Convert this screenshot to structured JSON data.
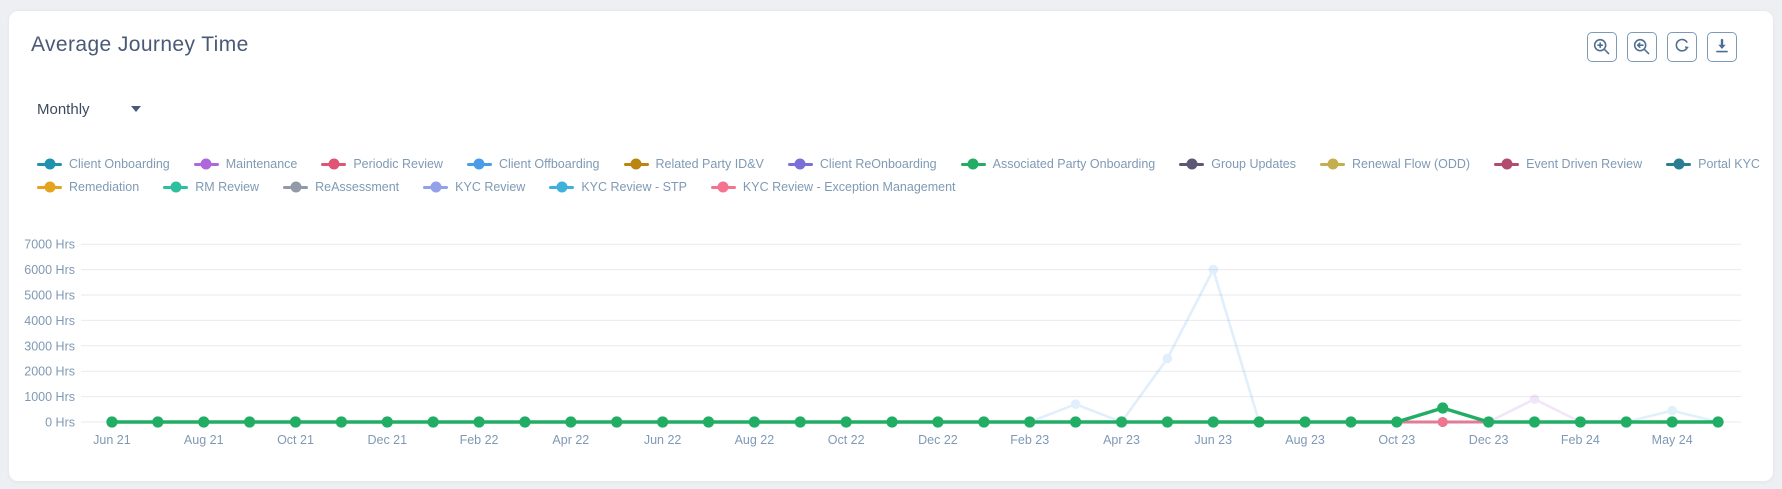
{
  "header": {
    "title": "Average Journey Time"
  },
  "toolbar": {
    "icons": [
      "zoom-in",
      "zoom-out",
      "reset-zoom",
      "download"
    ]
  },
  "controls": {
    "interval_select": {
      "value": "Monthly",
      "icon": "chevron-down-icon"
    }
  },
  "chart_data": {
    "type": "line",
    "title": "Average Journey Time",
    "interval": "Monthly",
    "grid": "horizontal",
    "legend_position": "top",
    "ylim": [
      0,
      7500
    ],
    "ylabel_unit": "Hrs",
    "yticks": [
      {
        "value": 0,
        "label": "0 Hrs"
      },
      {
        "value": 1000,
        "label": "1000 Hrs"
      },
      {
        "value": 2000,
        "label": "2000 Hrs"
      },
      {
        "value": 3000,
        "label": "3000 Hrs"
      },
      {
        "value": 4000,
        "label": "4000 Hrs"
      },
      {
        "value": 5000,
        "label": "5000 Hrs"
      },
      {
        "value": 6000,
        "label": "6000 Hrs"
      },
      {
        "value": 7000,
        "label": "7000 Hrs"
      }
    ],
    "categories": [
      "Jun 21",
      "Jul 21",
      "Aug 21",
      "Sep 21",
      "Oct 21",
      "Nov 21",
      "Dec 21",
      "Jan 22",
      "Feb 22",
      "Mar 22",
      "Apr 22",
      "May 22",
      "Jun 22",
      "Jul 22",
      "Aug 22",
      "Sep 22",
      "Oct 22",
      "Nov 22",
      "Dec 22",
      "Jan 23",
      "Feb 23",
      "Mar 23",
      "Apr 23",
      "May 23",
      "Jun 23",
      "Jul 23",
      "Aug 23",
      "Sep 23",
      "Oct 23",
      "Nov 23",
      "Dec 23",
      "Jan 24",
      "Feb 24",
      "Mar 24",
      "May 24",
      "Jun 24"
    ],
    "visible_x_tick_labels": [
      "Jun 21",
      "Aug 21",
      "Oct 21",
      "Dec 21",
      "Feb 22",
      "Apr 22",
      "Jun 22",
      "Aug 22",
      "Oct 22",
      "Dec 22",
      "Feb 23",
      "Apr 23",
      "Jun 23",
      "Aug 23",
      "Oct 23",
      "Dec 23",
      "Feb 24",
      "May 24"
    ],
    "series": [
      {
        "name": "Client Onboarding",
        "color": "#2192ae",
        "legend_row": 1,
        "dimmed": false,
        "values": [
          0,
          0,
          0,
          0,
          0,
          0,
          0,
          0,
          0,
          0,
          0,
          0,
          0,
          0,
          0,
          0,
          0,
          0,
          0,
          0,
          0,
          0,
          0,
          0,
          0,
          0,
          0,
          0,
          0,
          0,
          0,
          0,
          0,
          0,
          0,
          0
        ]
      },
      {
        "name": "Maintenance",
        "color": "#ae68d9",
        "legend_row": 1,
        "dimmed": true,
        "values": [
          0,
          0,
          0,
          0,
          0,
          0,
          0,
          0,
          0,
          0,
          0,
          0,
          0,
          0,
          0,
          0,
          0,
          0,
          0,
          0,
          0,
          0,
          0,
          0,
          0,
          0,
          0,
          0,
          0,
          0,
          0,
          900,
          0,
          0,
          0,
          0
        ]
      },
      {
        "name": "Periodic Review",
        "color": "#df5475",
        "legend_row": 1,
        "dimmed": false,
        "values": [
          0,
          0,
          0,
          0,
          0,
          0,
          0,
          0,
          0,
          0,
          0,
          0,
          0,
          0,
          0,
          0,
          0,
          0,
          0,
          0,
          0,
          0,
          0,
          0,
          0,
          0,
          0,
          0,
          0,
          0,
          0,
          0,
          0,
          0,
          0,
          0
        ]
      },
      {
        "name": "Client Offboarding",
        "color": "#4a9ce8",
        "legend_row": 1,
        "dimmed": true,
        "values": [
          0,
          0,
          0,
          0,
          0,
          0,
          0,
          0,
          0,
          0,
          0,
          0,
          0,
          0,
          0,
          0,
          0,
          0,
          0,
          0,
          0,
          700,
          0,
          2500,
          6000,
          0,
          0,
          0,
          0,
          0,
          0,
          0,
          0,
          0,
          0,
          0
        ]
      },
      {
        "name": "Related Party ID&V",
        "color": "#bb8511",
        "legend_row": 1,
        "dimmed": false,
        "values": [
          0,
          0,
          0,
          0,
          0,
          0,
          0,
          0,
          0,
          0,
          0,
          0,
          0,
          0,
          0,
          0,
          0,
          0,
          0,
          0,
          0,
          0,
          0,
          0,
          0,
          0,
          0,
          0,
          0,
          0,
          0,
          0,
          0,
          0,
          0,
          0
        ]
      },
      {
        "name": "Client ReOnboarding",
        "color": "#7a6fd9",
        "legend_row": 1,
        "dimmed": false,
        "values": [
          0,
          0,
          0,
          0,
          0,
          0,
          0,
          0,
          0,
          0,
          0,
          0,
          0,
          0,
          0,
          0,
          0,
          0,
          0,
          0,
          0,
          0,
          0,
          0,
          0,
          0,
          0,
          0,
          0,
          0,
          0,
          0,
          0,
          0,
          0,
          0
        ]
      },
      {
        "name": "Associated Party Onboarding",
        "color": "#22ad64",
        "legend_row": 1,
        "dimmed": false,
        "z": 1,
        "values": [
          0,
          0,
          0,
          0,
          0,
          0,
          0,
          0,
          0,
          0,
          0,
          0,
          0,
          0,
          0,
          0,
          0,
          0,
          0,
          0,
          0,
          0,
          0,
          0,
          0,
          0,
          0,
          0,
          0,
          550,
          0,
          0,
          0,
          0,
          0,
          0
        ]
      },
      {
        "name": "Group Updates",
        "color": "#5d5975",
        "legend_row": 1,
        "dimmed": false,
        "values": [
          0,
          0,
          0,
          0,
          0,
          0,
          0,
          0,
          0,
          0,
          0,
          0,
          0,
          0,
          0,
          0,
          0,
          0,
          0,
          0,
          0,
          0,
          0,
          0,
          0,
          0,
          0,
          0,
          0,
          0,
          0,
          0,
          0,
          0,
          0,
          0
        ]
      },
      {
        "name": "Renewal Flow (ODD)",
        "color": "#c5ae4e",
        "legend_row": 1,
        "dimmed": false,
        "values": [
          0,
          0,
          0,
          0,
          0,
          0,
          0,
          0,
          0,
          0,
          0,
          0,
          0,
          0,
          0,
          0,
          0,
          0,
          0,
          0,
          0,
          0,
          0,
          0,
          0,
          0,
          0,
          0,
          0,
          0,
          0,
          0,
          0,
          0,
          0,
          0
        ]
      },
      {
        "name": "Event Driven Review",
        "color": "#b14c6e",
        "legend_row": 1,
        "dimmed": false,
        "values": [
          0,
          0,
          0,
          0,
          0,
          0,
          0,
          0,
          0,
          0,
          0,
          0,
          0,
          0,
          0,
          0,
          0,
          0,
          0,
          0,
          0,
          0,
          0,
          0,
          0,
          0,
          0,
          0,
          0,
          0,
          0,
          0,
          0,
          0,
          0,
          0
        ]
      },
      {
        "name": "Portal KYC",
        "color": "#2b7e92",
        "legend_row": 1,
        "dimmed": false,
        "values": [
          0,
          0,
          0,
          0,
          0,
          0,
          0,
          0,
          0,
          0,
          0,
          0,
          0,
          0,
          0,
          0,
          0,
          0,
          0,
          0,
          0,
          0,
          0,
          0,
          0,
          0,
          0,
          0,
          0,
          0,
          0,
          0,
          0,
          0,
          0,
          0
        ]
      },
      {
        "name": "Remediation",
        "color": "#e4a41e",
        "legend_row": 2,
        "dimmed": false,
        "values": [
          0,
          0,
          0,
          0,
          0,
          0,
          0,
          0,
          0,
          0,
          0,
          0,
          0,
          0,
          0,
          0,
          0,
          0,
          0,
          0,
          0,
          0,
          0,
          0,
          0,
          0,
          0,
          0,
          0,
          0,
          0,
          0,
          0,
          0,
          0,
          0
        ]
      },
      {
        "name": "RM Review",
        "color": "#2dbf9f",
        "legend_row": 2,
        "dimmed": false,
        "values": [
          0,
          0,
          0,
          0,
          0,
          0,
          0,
          0,
          0,
          0,
          0,
          0,
          0,
          0,
          0,
          0,
          0,
          0,
          0,
          0,
          0,
          0,
          0,
          0,
          0,
          0,
          0,
          0,
          0,
          0,
          0,
          0,
          0,
          0,
          0,
          0
        ]
      },
      {
        "name": "ReAssessment",
        "color": "#929aa7",
        "legend_row": 2,
        "dimmed": false,
        "values": [
          0,
          0,
          0,
          0,
          0,
          0,
          0,
          0,
          0,
          0,
          0,
          0,
          0,
          0,
          0,
          0,
          0,
          0,
          0,
          0,
          0,
          0,
          0,
          0,
          0,
          0,
          0,
          0,
          0,
          0,
          0,
          0,
          0,
          0,
          0,
          0
        ]
      },
      {
        "name": "KYC Review",
        "color": "#93a0ea",
        "legend_row": 2,
        "dimmed": false,
        "values": [
          0,
          0,
          0,
          0,
          0,
          0,
          0,
          0,
          0,
          0,
          0,
          0,
          0,
          0,
          0,
          0,
          0,
          0,
          0,
          0,
          0,
          0,
          0,
          0,
          0,
          0,
          0,
          0,
          0,
          0,
          0,
          0,
          0,
          0,
          0,
          0
        ]
      },
      {
        "name": "KYC Review - STP",
        "color": "#3fb1dc",
        "legend_row": 2,
        "dimmed": true,
        "values": [
          0,
          0,
          0,
          0,
          0,
          0,
          0,
          0,
          0,
          0,
          0,
          0,
          0,
          0,
          0,
          0,
          0,
          0,
          0,
          0,
          0,
          0,
          0,
          0,
          0,
          0,
          0,
          0,
          0,
          0,
          0,
          0,
          0,
          0,
          450,
          0
        ]
      },
      {
        "name": "KYC Review - Exception Management",
        "color": "#f47490",
        "legend_row": 2,
        "dimmed": false,
        "values": [
          0,
          0,
          0,
          0,
          0,
          0,
          0,
          0,
          0,
          0,
          0,
          0,
          0,
          0,
          0,
          0,
          0,
          0,
          0,
          0,
          0,
          0,
          0,
          0,
          0,
          0,
          0,
          0,
          0,
          0,
          0,
          0,
          0,
          0,
          0,
          0
        ]
      }
    ]
  }
}
